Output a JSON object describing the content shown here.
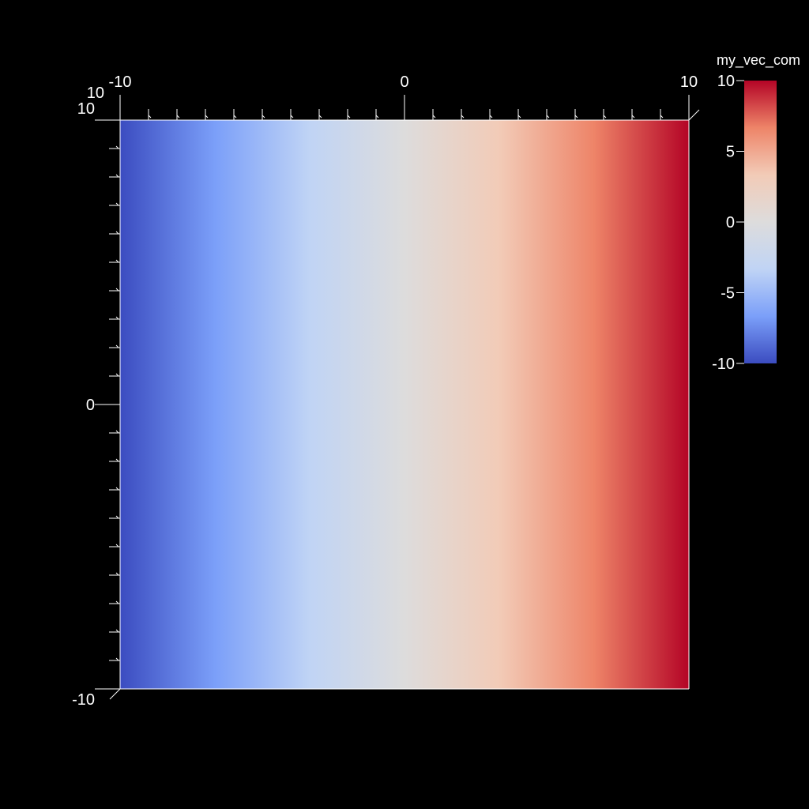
{
  "chart_data": {
    "type": "heatmap",
    "field_name": "my_vec_com",
    "description_of_field": "scalar value equals x coordinate (varies left to right only)",
    "x": [
      -10,
      10
    ],
    "y": [
      -10,
      10
    ],
    "xlim": [
      -10,
      10
    ],
    "ylim": [
      -10,
      10
    ],
    "x_major_ticks": [
      -10,
      0,
      10
    ],
    "y_major_ticks": [
      -10,
      0,
      10
    ],
    "x_minor_tick_count": 20,
    "y_minor_tick_count": 20,
    "colorbar": {
      "title": "my_vec_com",
      "range": [
        -10,
        10
      ],
      "ticks": [
        10,
        5,
        0,
        -5,
        -10
      ],
      "colormap": "coolwarm",
      "color_stops": [
        "#3b4cc0",
        "#7b9ff9",
        "#c0d4f5",
        "#dddcdc",
        "#f2cbb7",
        "#ee8468",
        "#b40426"
      ]
    },
    "axis_color": "#ffffff",
    "background": "#000000",
    "grid": false
  }
}
